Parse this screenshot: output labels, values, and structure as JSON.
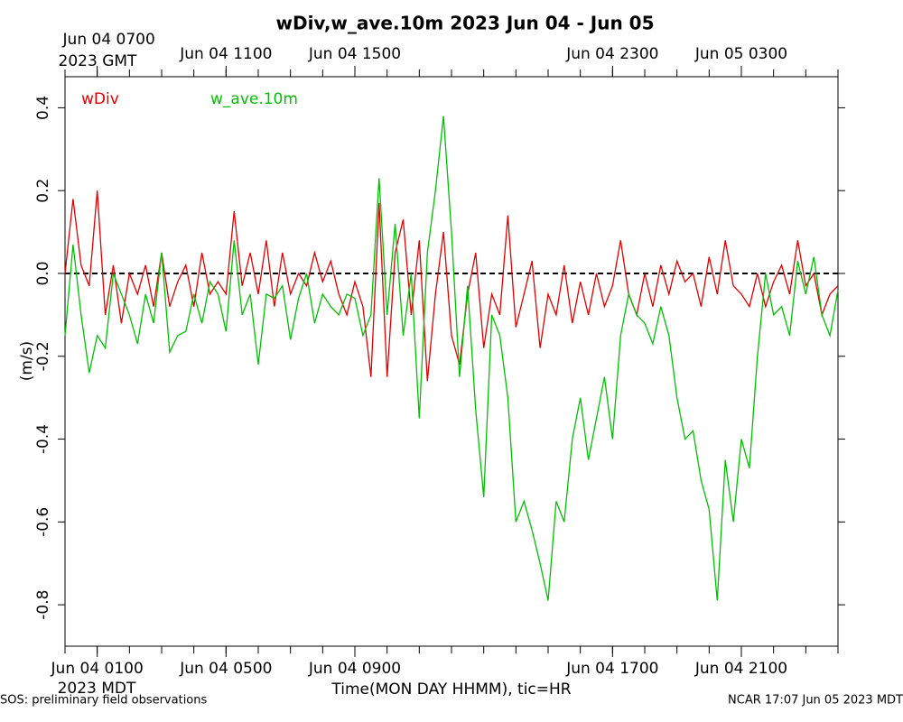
{
  "chart_data": {
    "type": "line",
    "title": "wDiv,w_ave.10m 2023 Jun 04 - Jun 05",
    "xlabel": "Time(MON DAY HHMM), tic=HR",
    "ylabel": "(m/s)",
    "x_zone_label": "2023 MDT",
    "x2_zone_label": "2023 GMT",
    "footer_left": "SOS: preliminary field observations",
    "footer_right": "NCAR 17:07 Jun 05 2023 MDT",
    "legend": "upper left",
    "hline": 0,
    "xlim": [
      0,
      24
    ],
    "ylim": [
      -0.9,
      0.475
    ],
    "xticks": [
      {
        "value": 1,
        "label": "Jun 04 0100"
      },
      {
        "value": 5,
        "label": "Jun 04 0500"
      },
      {
        "value": 9,
        "label": "Jun 04 0900"
      },
      {
        "value": 17,
        "label": "Jun 04 1700"
      },
      {
        "value": 21,
        "label": "Jun 04 2100"
      }
    ],
    "x2ticks": [
      {
        "value": 1,
        "label": "Jun 04 0700"
      },
      {
        "value": 5,
        "label": "Jun 04 1100"
      },
      {
        "value": 9,
        "label": "Jun 04 1500"
      },
      {
        "value": 17,
        "label": "Jun 04 2300"
      },
      {
        "value": 21,
        "label": "Jun 05 0300"
      }
    ],
    "xminor_ticks": [
      0,
      1,
      2,
      3,
      4,
      5,
      6,
      7,
      8,
      9,
      10,
      11,
      12,
      13,
      14,
      15,
      16,
      17,
      18,
      19,
      20,
      21,
      22,
      23,
      24
    ],
    "yticks": [
      0.4,
      0.2,
      {
        "value": 0,
        "label": "0.0"
      },
      -0.2,
      -0.4,
      -0.6,
      -0.8
    ],
    "x": [
      0,
      0.25,
      0.5,
      0.75,
      1,
      1.25,
      1.5,
      1.75,
      2,
      2.25,
      2.5,
      2.75,
      3,
      3.25,
      3.5,
      3.75,
      4,
      4.25,
      4.5,
      4.75,
      5,
      5.25,
      5.5,
      5.75,
      6,
      6.25,
      6.5,
      6.75,
      7,
      7.25,
      7.5,
      7.75,
      8,
      8.25,
      8.5,
      8.75,
      9,
      9.25,
      9.5,
      9.75,
      10,
      10.25,
      10.5,
      10.75,
      11,
      11.25,
      11.5,
      11.75,
      12,
      12.25,
      12.5,
      12.75,
      13,
      13.25,
      13.5,
      13.75,
      14,
      14.25,
      14.5,
      14.75,
      15,
      15.25,
      15.5,
      15.75,
      16,
      16.25,
      16.5,
      16.75,
      17,
      17.25,
      17.5,
      17.75,
      18,
      18.25,
      18.5,
      18.75,
      19,
      19.25,
      19.5,
      19.75,
      20,
      20.25,
      20.5,
      20.75,
      21,
      21.25,
      21.5,
      21.75,
      22,
      22.25,
      22.5,
      22.75,
      23,
      23.25,
      23.5,
      23.75,
      24
    ],
    "series": [
      {
        "name": "wDiv",
        "color": "#e00000",
        "values": [
          0.0,
          0.18,
          0.02,
          -0.03,
          0.2,
          -0.1,
          0.02,
          -0.12,
          0.0,
          -0.05,
          0.02,
          -0.08,
          0.05,
          -0.08,
          -0.02,
          0.02,
          -0.08,
          0.05,
          -0.05,
          -0.02,
          -0.05,
          0.15,
          -0.03,
          0.05,
          -0.05,
          0.08,
          -0.08,
          0.05,
          -0.05,
          0.0,
          -0.03,
          0.05,
          -0.02,
          0.03,
          -0.05,
          -0.1,
          -0.02,
          -0.08,
          -0.25,
          0.17,
          -0.25,
          0.05,
          0.13,
          -0.1,
          0.08,
          -0.26,
          -0.05,
          0.1,
          -0.15,
          -0.22,
          -0.05,
          0.05,
          -0.18,
          -0.05,
          -0.1,
          0.14,
          -0.13,
          -0.05,
          0.03,
          -0.18,
          -0.05,
          -0.1,
          0.02,
          -0.12,
          -0.02,
          -0.1,
          0.0,
          -0.08,
          -0.03,
          0.08,
          -0.05,
          -0.1,
          0.0,
          -0.08,
          0.02,
          -0.05,
          0.03,
          -0.02,
          0.0,
          -0.08,
          0.04,
          -0.05,
          0.08,
          -0.03,
          -0.05,
          -0.08,
          0.0,
          -0.08,
          -0.02,
          0.02,
          -0.05,
          0.08,
          -0.03,
          0.0,
          -0.1,
          -0.05,
          -0.03
        ]
      },
      {
        "name": "w_ave.10m",
        "color": "#00c000",
        "values": [
          -0.15,
          0.07,
          -0.1,
          -0.24,
          -0.15,
          -0.18,
          0.0,
          -0.05,
          -0.1,
          -0.17,
          -0.05,
          -0.12,
          0.05,
          -0.19,
          -0.15,
          -0.14,
          -0.05,
          -0.12,
          -0.02,
          -0.05,
          -0.14,
          0.08,
          -0.1,
          -0.05,
          -0.22,
          -0.05,
          -0.06,
          -0.03,
          -0.16,
          -0.06,
          0.0,
          -0.12,
          -0.05,
          -0.08,
          -0.1,
          -0.05,
          -0.06,
          -0.15,
          -0.1,
          0.23,
          -0.1,
          0.12,
          -0.15,
          0.0,
          -0.35,
          0.05,
          0.2,
          0.38,
          0.1,
          -0.25,
          -0.03,
          -0.33,
          -0.54,
          -0.1,
          -0.15,
          -0.3,
          -0.6,
          -0.55,
          -0.62,
          -0.7,
          -0.79,
          -0.55,
          -0.6,
          -0.4,
          -0.3,
          -0.45,
          -0.35,
          -0.25,
          -0.4,
          -0.15,
          -0.05,
          -0.1,
          -0.12,
          -0.17,
          -0.08,
          -0.15,
          -0.3,
          -0.4,
          -0.38,
          -0.5,
          -0.57,
          -0.79,
          -0.45,
          -0.6,
          -0.4,
          -0.47,
          -0.2,
          0.0,
          -0.1,
          -0.08,
          -0.15,
          0.03,
          -0.05,
          0.04,
          -0.1,
          -0.15,
          -0.04
        ]
      }
    ]
  }
}
